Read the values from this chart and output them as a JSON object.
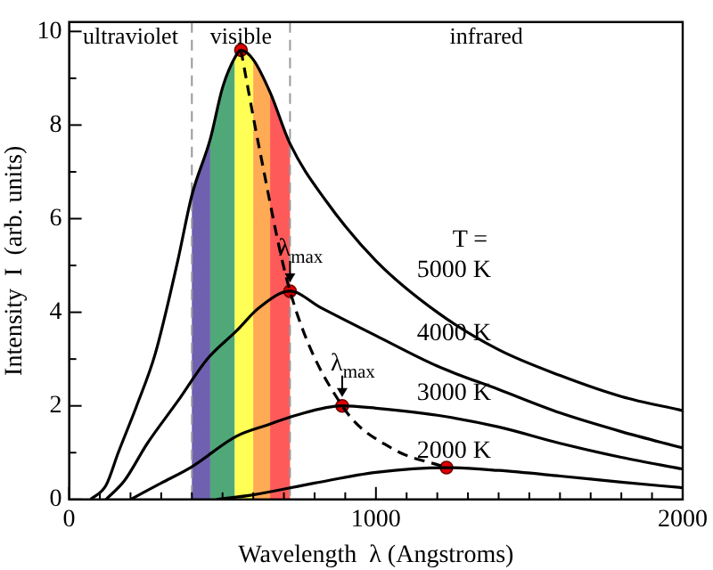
{
  "chart_data": {
    "type": "line",
    "xlabel": "Wavelength  λ (Angstroms)",
    "ylabel": "Intensity  I  (arb. units)",
    "xlim": [
      0,
      2000
    ],
    "ylim": [
      0,
      10.2
    ],
    "xticks": [
      0,
      {
        "value": 100,
        "label": null
      },
      {
        "value": 200,
        "label": null
      },
      {
        "value": 300,
        "label": null
      },
      {
        "value": 400,
        "label": null
      },
      {
        "value": 500,
        "label": null
      },
      {
        "value": 600,
        "label": null
      },
      {
        "value": 700,
        "label": null
      },
      {
        "value": 800,
        "label": null
      },
      {
        "value": 900,
        "label": null
      },
      1000,
      {
        "value": 1100,
        "label": null
      },
      {
        "value": 1200,
        "label": null
      },
      {
        "value": 1300,
        "label": null
      },
      {
        "value": 1400,
        "label": null
      },
      {
        "value": 1500,
        "label": null
      },
      {
        "value": 1600,
        "label": null
      },
      {
        "value": 1700,
        "label": null
      },
      {
        "value": 1800,
        "label": null
      },
      {
        "value": 1900,
        "label": null
      },
      2000
    ],
    "yticks": [
      0,
      {
        "value": 1,
        "label": null
      },
      2,
      {
        "value": 3,
        "label": null
      },
      4,
      {
        "value": 5,
        "label": null
      },
      6,
      {
        "value": 7,
        "label": null
      },
      8,
      {
        "value": 9,
        "label": null
      },
      10
    ],
    "grid": false,
    "legend": false,
    "marker": "none",
    "series": [
      {
        "name": "5000 K",
        "color": "#000000",
        "x": [
          70,
          120,
          160,
          220,
          280,
          354,
          400,
          460,
          500,
          545,
          560,
          600,
          655,
          720,
          835,
          1000,
          1200,
          1400,
          1600,
          1800,
          2000
        ],
        "values": [
          0,
          0.3,
          1,
          2,
          3.1,
          5.1,
          6.5,
          7.7,
          8.8,
          9.5,
          9.6,
          9.4,
          8.7,
          7.6,
          6.4,
          5.1,
          4,
          3.2,
          2.65,
          2.2,
          1.9
        ]
      },
      {
        "name": "4000 K",
        "color": "#000000",
        "x": [
          120,
          180,
          255,
          354,
          450,
          545,
          620,
          720,
          820,
          1000,
          1200,
          1400,
          1600,
          1800,
          2000
        ],
        "values": [
          0,
          0.4,
          1.2,
          2.1,
          3,
          3.6,
          4.1,
          4.45,
          4.1,
          3.5,
          2.85,
          2.35,
          1.85,
          1.45,
          1.1
        ]
      },
      {
        "name": "3000 K",
        "color": "#000000",
        "x": [
          200,
          300,
          400,
          545,
          650,
          740,
          890,
          1000,
          1200,
          1400,
          1600,
          1800,
          2000
        ],
        "values": [
          0,
          0.35,
          0.7,
          1.35,
          1.6,
          1.8,
          2,
          1.95,
          1.8,
          1.55,
          1.2,
          0.9,
          0.65
        ]
      },
      {
        "name": "2000 K",
        "color": "#000000",
        "x": [
          480,
          600,
          800,
          1000,
          1230,
          1400,
          1600,
          1800,
          2000
        ],
        "values": [
          0,
          0.1,
          0.35,
          0.58,
          0.68,
          0.62,
          0.5,
          0.37,
          0.25
        ]
      },
      {
        "color": "#000000",
        "line_style": "dashed",
        "x": [
          560,
          620,
          720,
          890,
          1050,
          1230
        ],
        "values": [
          9.6,
          7.5,
          4.45,
          2,
          1.1,
          0.68
        ]
      },
      {
        "type": "scatter",
        "color": "#e00000",
        "marker": "circle",
        "x": [
          560,
          720,
          890,
          1230
        ],
        "values": [
          9.6,
          4.45,
          2,
          0.68
        ]
      }
    ],
    "ref_lines": [
      {
        "axis": "x",
        "value": 400,
        "color": "#999999",
        "line_style": "dashed"
      },
      {
        "axis": "x",
        "value": 720,
        "color": "#999999",
        "line_style": "dashed"
      }
    ],
    "bands": [
      {
        "axis": "x",
        "from": 400,
        "to": 460,
        "color": "#7060b0"
      },
      {
        "axis": "x",
        "from": 460,
        "to": 540,
        "color": "#50a878"
      },
      {
        "axis": "x",
        "from": 540,
        "to": 600,
        "color": "#ffff55"
      },
      {
        "axis": "x",
        "from": 600,
        "to": 655,
        "color": "#ffaa55"
      },
      {
        "axis": "x",
        "from": 655,
        "to": 720,
        "color": "#ff5a5a"
      }
    ],
    "annotations": [
      "ultraviolet",
      "visible",
      "infrared",
      "T =",
      {
        "text": "λ$_{max}$",
        "x": 720,
        "y": 4.45
      },
      {
        "text": "λ$_{max}$",
        "x": 890,
        "y": 2
      }
    ]
  }
}
